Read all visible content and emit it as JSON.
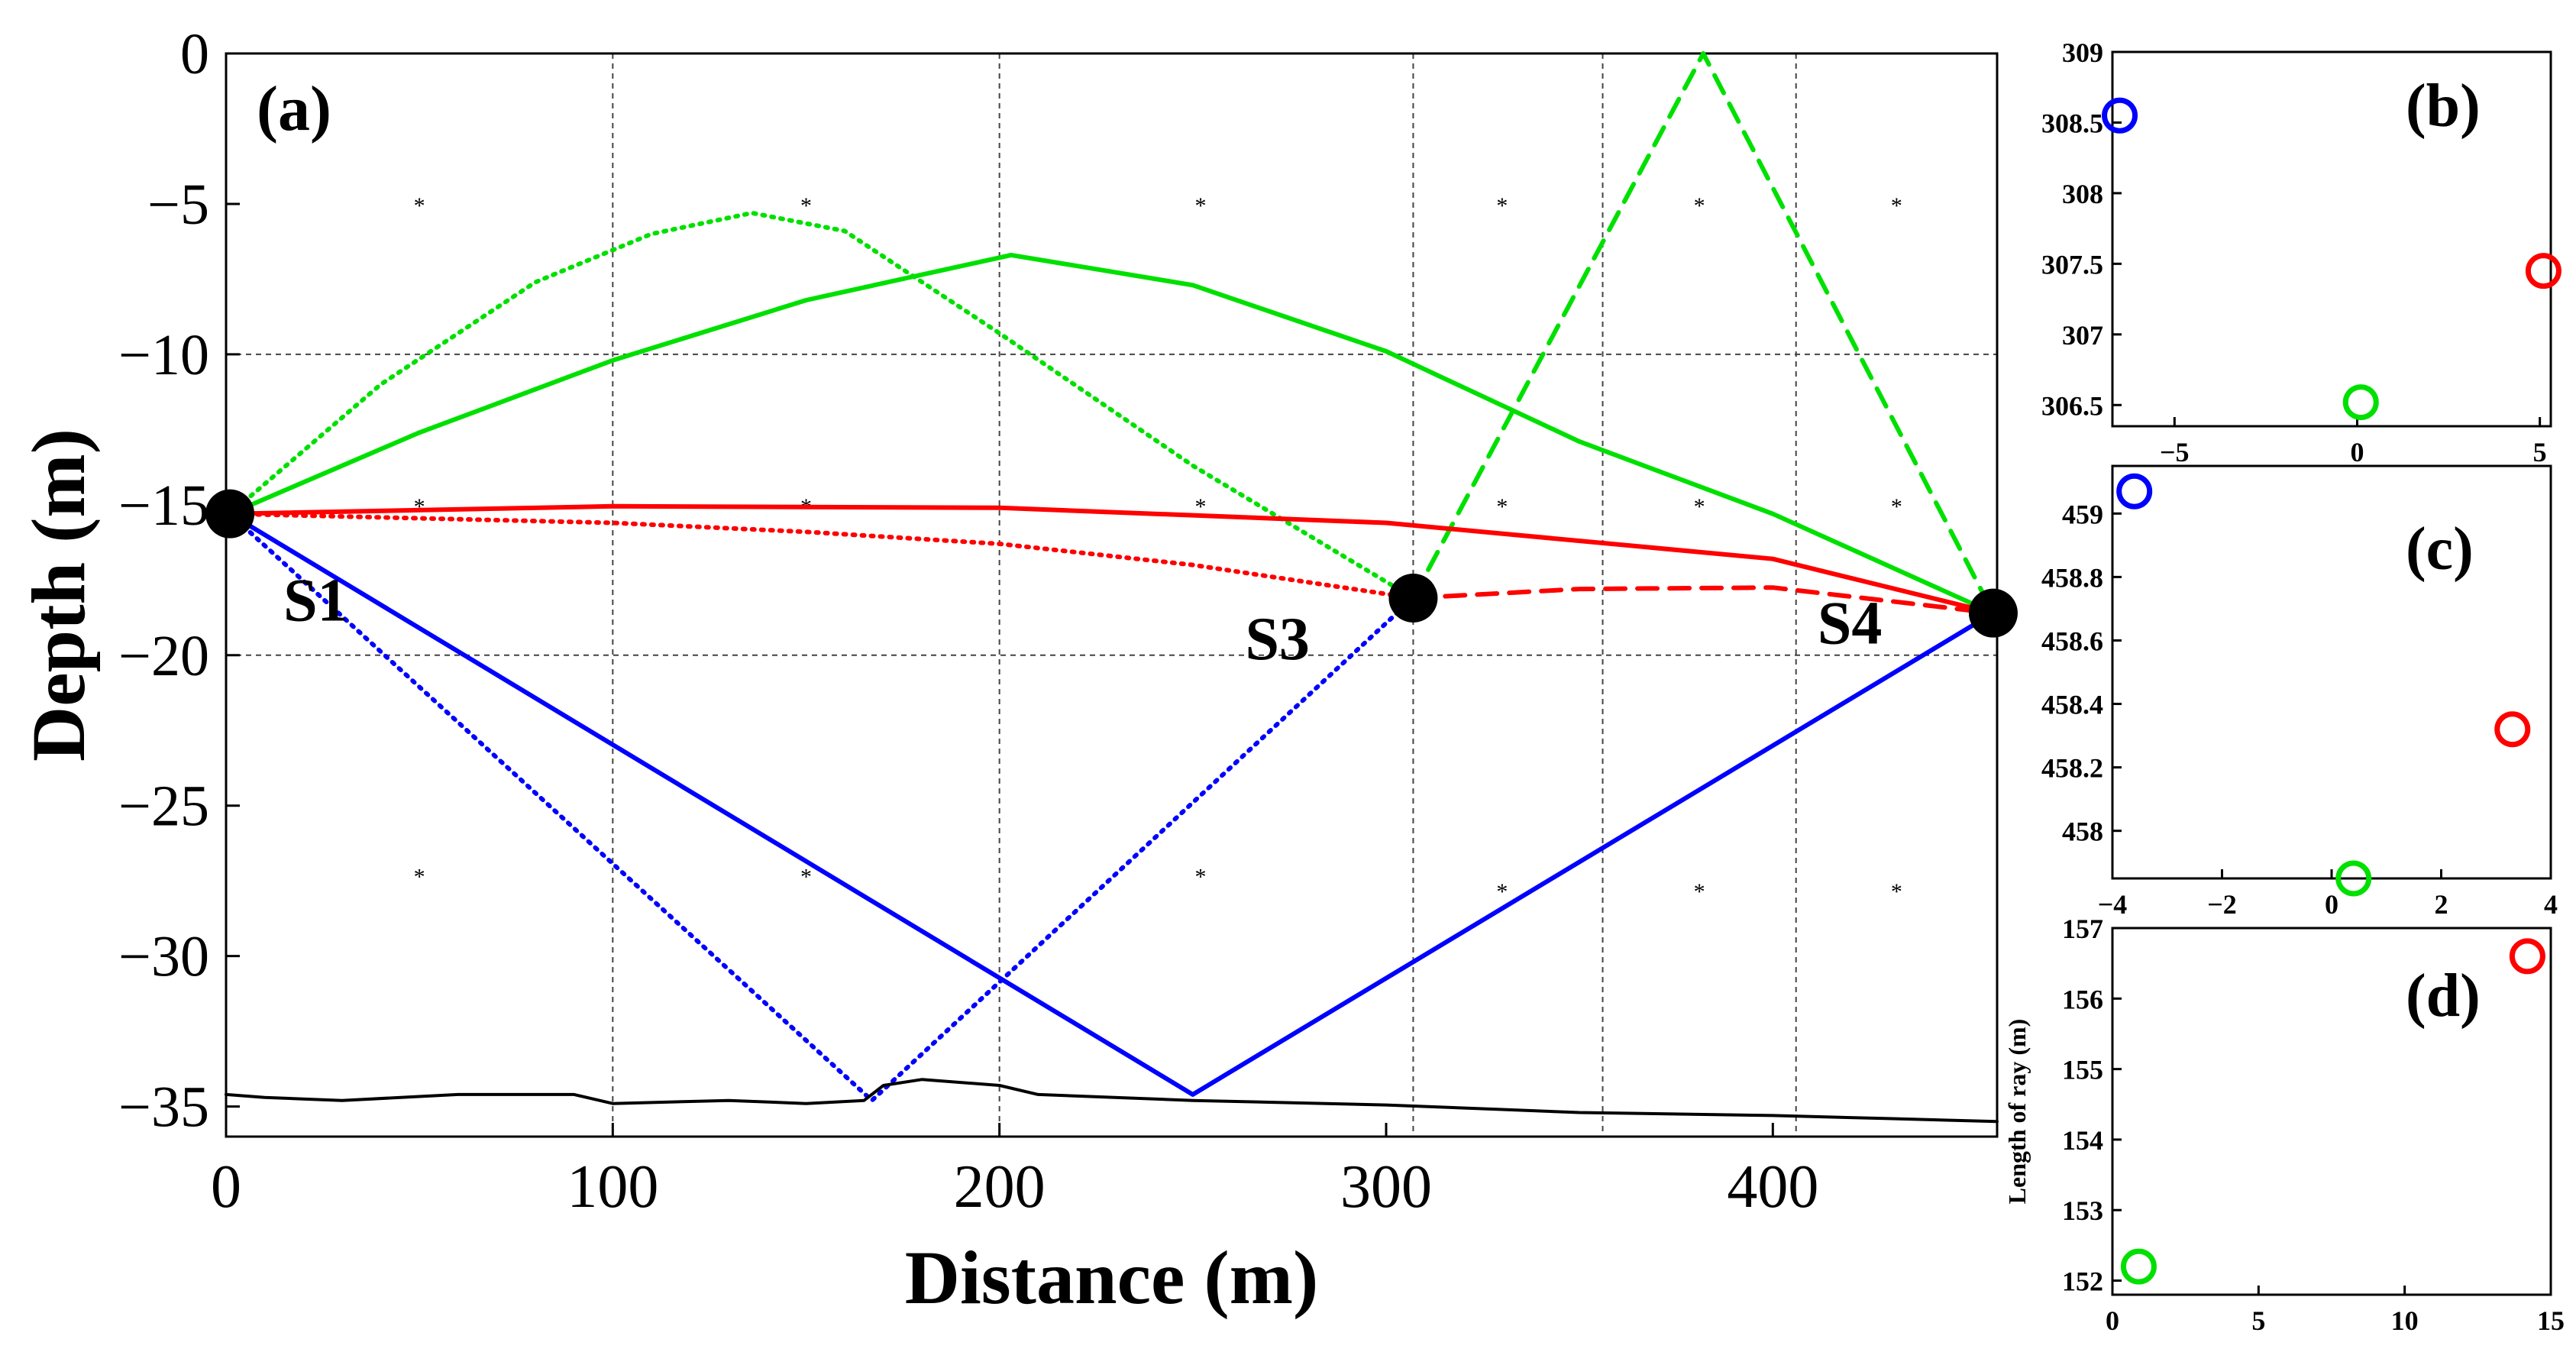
{
  "colors": {
    "blue": "#0000ff",
    "red": "#ff0000",
    "green": "#00e000",
    "black": "#000000"
  },
  "chart_data": [
    {
      "id": "a",
      "type": "line",
      "panel_label": "(a)",
      "title": "",
      "xlabel": "Distance (m)",
      "ylabel": "Depth (m)",
      "xlim": [
        0,
        458
      ],
      "ylim": [
        -36,
        0
      ],
      "xticks": [
        0,
        100,
        200,
        300,
        400
      ],
      "xtick_labels": [
        "0",
        "100",
        "200",
        "300",
        "400"
      ],
      "yticks": [
        0,
        -5,
        -10,
        -15,
        -20,
        -25,
        -30,
        -35
      ],
      "ytick_labels": [
        "0",
        "−5",
        "−10",
        "−15",
        "−20",
        "−25",
        "−30",
        "−35"
      ],
      "grid_x": [
        100,
        200,
        307,
        356,
        406
      ],
      "grid_y": [
        -10,
        -20
      ],
      "stations": [
        {
          "label": "S1",
          "x": 1,
          "y": -15.3
        },
        {
          "label": "S3",
          "x": 307,
          "y": -18.1
        },
        {
          "label": "S4",
          "x": 457,
          "y": -18.6
        }
      ],
      "markers": [
        [
          50,
          -5
        ],
        [
          150,
          -5
        ],
        [
          252,
          -5
        ],
        [
          330,
          -5
        ],
        [
          381,
          -5
        ],
        [
          432,
          -5
        ],
        [
          50,
          -15
        ],
        [
          150,
          -15
        ],
        [
          252,
          -15
        ],
        [
          330,
          -15
        ],
        [
          381,
          -15
        ],
        [
          432,
          -15
        ],
        [
          50,
          -27.3
        ],
        [
          150,
          -27.3
        ],
        [
          252,
          -27.3
        ],
        [
          330,
          -27.8
        ],
        [
          381,
          -27.8
        ],
        [
          432,
          -27.8
        ]
      ],
      "series": [
        {
          "name": "S1-S4 green solid",
          "color": "green",
          "style": "solid",
          "x": [
            1,
            50,
            100,
            150,
            203,
            250,
            300,
            350,
            400,
            457
          ],
          "y": [
            -15.3,
            -12.6,
            -10.2,
            -8.2,
            -6.7,
            -7.7,
            -9.9,
            -12.9,
            -15.3,
            -18.6
          ]
        },
        {
          "name": "S1-S3 green dotted",
          "color": "green",
          "style": "dotted",
          "x": [
            1,
            40,
            80,
            110,
            136,
            160,
            200,
            250,
            307
          ],
          "y": [
            -15.3,
            -11.0,
            -7.6,
            -6.0,
            -5.3,
            -5.9,
            -9.3,
            -13.7,
            -18.1
          ]
        },
        {
          "name": "S3-S4 green dashed",
          "color": "green",
          "style": "dashed",
          "x": [
            307,
            382,
            457
          ],
          "y": [
            -18.1,
            0,
            -18.6
          ]
        },
        {
          "name": "S1-S4 red solid",
          "color": "red",
          "style": "solid",
          "x": [
            1,
            100,
            200,
            300,
            400,
            457
          ],
          "y": [
            -15.3,
            -15.05,
            -15.1,
            -15.6,
            -16.8,
            -18.6
          ]
        },
        {
          "name": "S1-S3 red dotted",
          "color": "red",
          "style": "dotted",
          "x": [
            1,
            100,
            150,
            200,
            250,
            307
          ],
          "y": [
            -15.3,
            -15.6,
            -15.9,
            -16.3,
            -17.0,
            -18.1
          ]
        },
        {
          "name": "S3-S4 red dashed",
          "color": "red",
          "style": "dashed",
          "x": [
            307,
            350,
            400,
            457
          ],
          "y": [
            -18.1,
            -17.8,
            -17.75,
            -18.6
          ]
        },
        {
          "name": "S1-S4 blue solid",
          "color": "blue",
          "style": "solid",
          "x": [
            1,
            250,
            457
          ],
          "y": [
            -15.3,
            -34.6,
            -18.6
          ]
        },
        {
          "name": "S1-S3 blue dotted",
          "color": "blue",
          "style": "dotted",
          "x": [
            1,
            167,
            307
          ],
          "y": [
            -15.3,
            -34.8,
            -18.1
          ]
        },
        {
          "name": "bathymetry",
          "color": "black",
          "style": "solid",
          "x": [
            0,
            10,
            30,
            60,
            90,
            100,
            130,
            150,
            165,
            170,
            180,
            200,
            210,
            250,
            300,
            330,
            350,
            400,
            430,
            458
          ],
          "y": [
            -34.6,
            -34.7,
            -34.8,
            -34.6,
            -34.6,
            -34.9,
            -34.8,
            -34.9,
            -34.8,
            -34.3,
            -34.1,
            -34.3,
            -34.6,
            -34.8,
            -34.95,
            -35.1,
            -35.2,
            -35.3,
            -35.4,
            -35.5
          ]
        }
      ]
    },
    {
      "id": "b",
      "type": "scatter",
      "panel_label": "(b)",
      "xlim": [
        -6.7,
        5.3
      ],
      "ylim": [
        306.35,
        309
      ],
      "xticks": [
        -5,
        0,
        5
      ],
      "xtick_labels": [
        "−5",
        "0",
        "5"
      ],
      "yticks": [
        306.5,
        307,
        307.5,
        308,
        308.5,
        309
      ],
      "ytick_labels": [
        "306.5",
        "307",
        "307.5",
        "308",
        "308.5",
        "309"
      ],
      "points": [
        {
          "x": -6.5,
          "y": 308.55,
          "color": "blue"
        },
        {
          "x": 0.1,
          "y": 306.52,
          "color": "green"
        },
        {
          "x": 5.1,
          "y": 307.45,
          "color": "red"
        }
      ]
    },
    {
      "id": "c",
      "type": "scatter",
      "panel_label": "(c)",
      "xlim": [
        -4,
        4
      ],
      "ylim": [
        457.85,
        459.15
      ],
      "xticks": [
        -4,
        -2,
        0,
        2,
        4
      ],
      "xtick_labels": [
        "−4",
        "−2",
        "0",
        "2",
        "4"
      ],
      "yticks": [
        458,
        458.2,
        458.4,
        458.6,
        458.8,
        459
      ],
      "ytick_labels": [
        "458",
        "458.2",
        "458.4",
        "458.6",
        "458.8",
        "459"
      ],
      "points": [
        {
          "x": -3.6,
          "y": 459.07,
          "color": "blue"
        },
        {
          "x": 0.4,
          "y": 457.85,
          "color": "green"
        },
        {
          "x": 3.3,
          "y": 458.32,
          "color": "red"
        }
      ]
    },
    {
      "id": "d",
      "type": "scatter",
      "panel_label": "(d)",
      "ylabel": "Length of ray (m)",
      "xlim": [
        0,
        15
      ],
      "ylim": [
        151.8,
        157
      ],
      "xticks": [
        0,
        5,
        10,
        15
      ],
      "xtick_labels": [
        "0",
        "5",
        "10",
        "15"
      ],
      "yticks": [
        152,
        153,
        154,
        155,
        156,
        157
      ],
      "ytick_labels": [
        "152",
        "153",
        "154",
        "155",
        "156",
        "157"
      ],
      "points": [
        {
          "x": 0.9,
          "y": 152.2,
          "color": "green"
        },
        {
          "x": 14.2,
          "y": 156.6,
          "color": "red"
        }
      ]
    }
  ]
}
